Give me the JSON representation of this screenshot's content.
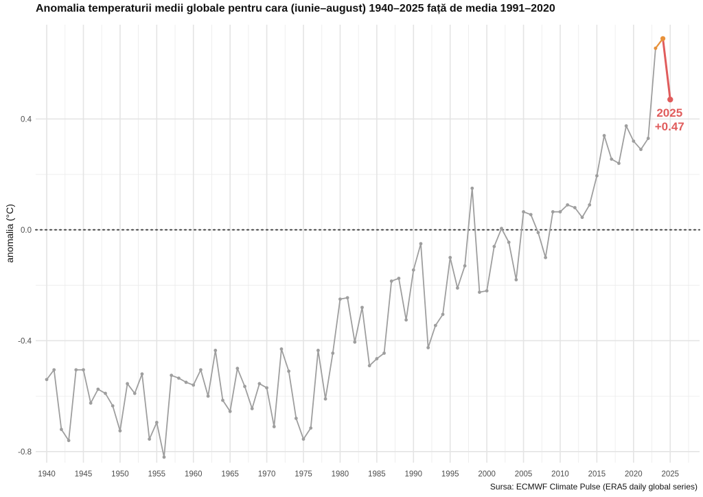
{
  "chart_data": {
    "type": "line",
    "title": "Anomalia temperaturii medii globale pentru cara (iunie–august) 1940–2025 față de media 1991–2020",
    "xlabel": "",
    "ylabel": "anomalia (°C)",
    "caption": "Sursa: ECMWF Climate Pulse (ERA5 daily global series)",
    "xlim": [
      1938.5,
      2029
    ],
    "ylim": [
      -0.84,
      0.74
    ],
    "x_ticks": [
      1940,
      1945,
      1950,
      1955,
      1960,
      1965,
      1970,
      1975,
      1980,
      1985,
      1990,
      1995,
      2000,
      2005,
      2010,
      2015,
      2020,
      2025
    ],
    "x_tick_labels": [
      "1940",
      "1945",
      "1950",
      "1955",
      "1960",
      "1965",
      "1970",
      "1975",
      "1980",
      "1985",
      "1990",
      "1995",
      "2000",
      "2005",
      "2010",
      "2015",
      "2020",
      "2025"
    ],
    "y_ticks": [
      -0.8,
      -0.4,
      0.0,
      0.4
    ],
    "y_tick_labels": [
      "-0.8",
      "-0.4",
      "0.0",
      "0.4"
    ],
    "grid": true,
    "reference_line": {
      "y": 0.0,
      "style": "dotted",
      "color": "#444444"
    },
    "colors": {
      "series": "#9e9e9e",
      "highlight_2024": "#e8913a",
      "highlight_2025": "#e05c5c",
      "grid": "#ebebeb"
    },
    "series": [
      {
        "x": [
          1940,
          1941,
          1942,
          1943,
          1944,
          1945,
          1946,
          1947,
          1948,
          1949,
          1950,
          1951,
          1952,
          1953,
          1954,
          1955,
          1956,
          1957,
          1958,
          1959,
          1960,
          1961,
          1962,
          1963,
          1964,
          1965,
          1966,
          1967,
          1968,
          1969,
          1970,
          1971,
          1972,
          1973,
          1974,
          1975,
          1976,
          1977,
          1978,
          1979,
          1980,
          1981,
          1982,
          1983,
          1984,
          1985,
          1986,
          1987,
          1988,
          1989,
          1990,
          1991,
          1992,
          1993,
          1994,
          1995,
          1996,
          1997,
          1998,
          1999,
          2000,
          2001,
          2002,
          2003,
          2004,
          2005,
          2006,
          2007,
          2008,
          2009,
          2010,
          2011,
          2012,
          2013,
          2014,
          2015,
          2016,
          2017,
          2018,
          2019,
          2020,
          2021,
          2022,
          2023,
          2024,
          2025
        ],
        "values": [
          -0.54,
          -0.505,
          -0.72,
          -0.76,
          -0.505,
          -0.505,
          -0.625,
          -0.575,
          -0.59,
          -0.635,
          -0.725,
          -0.555,
          -0.59,
          -0.52,
          -0.755,
          -0.695,
          -0.82,
          -0.525,
          -0.535,
          -0.55,
          -0.56,
          -0.505,
          -0.6,
          -0.435,
          -0.615,
          -0.655,
          -0.5,
          -0.565,
          -0.645,
          -0.555,
          -0.57,
          -0.71,
          -0.43,
          -0.51,
          -0.68,
          -0.755,
          -0.715,
          -0.435,
          -0.61,
          -0.445,
          -0.25,
          -0.245,
          -0.405,
          -0.28,
          -0.49,
          -0.465,
          -0.445,
          -0.185,
          -0.175,
          -0.325,
          -0.145,
          -0.05,
          -0.425,
          -0.345,
          -0.305,
          -0.1,
          -0.21,
          -0.13,
          0.15,
          -0.225,
          -0.22,
          -0.06,
          0.005,
          -0.045,
          -0.18,
          0.065,
          0.055,
          -0.01,
          -0.1,
          0.065,
          0.065,
          0.09,
          0.08,
          0.045,
          0.09,
          0.195,
          0.34,
          0.255,
          0.24,
          0.375,
          0.32,
          0.29,
          0.33,
          0.655,
          0.69,
          0.47
        ]
      }
    ],
    "annotation": {
      "year_label": "2025",
      "value_label": "+0.47",
      "x": 2025,
      "y": 0.47
    }
  }
}
